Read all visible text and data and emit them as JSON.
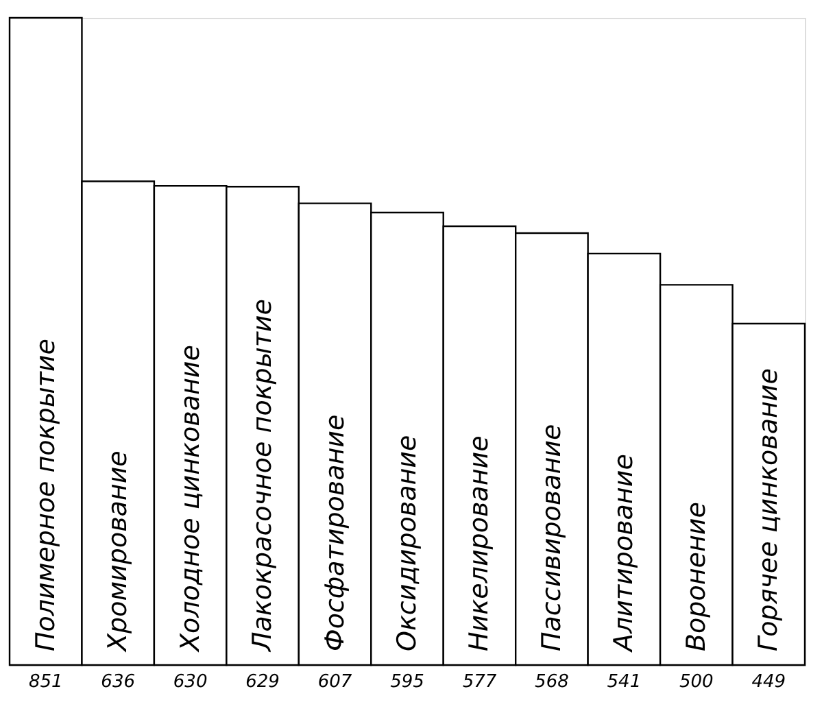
{
  "chart_data": {
    "type": "bar",
    "categories": [
      "Полимерное покрытие",
      "Хромирование",
      "Холодное цинкование",
      "Лакокрасочное покрытие",
      "Фосфатирование",
      "Оксидирование",
      "Никелирование",
      "Пассивирование",
      "Алитирование",
      "Воронение",
      "Горячее цинкование"
    ],
    "values": [
      851,
      636,
      630,
      629,
      607,
      595,
      577,
      568,
      541,
      500,
      449
    ],
    "color": "#ffffff",
    "data_labels": true
  }
}
